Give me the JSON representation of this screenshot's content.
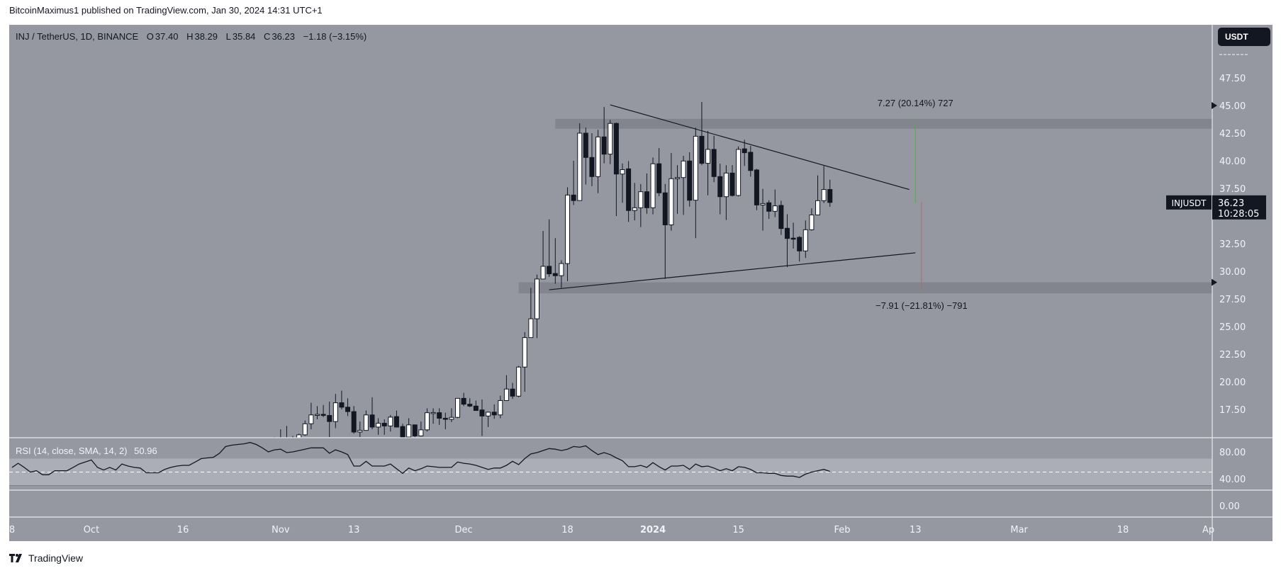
{
  "publish_line": "BitcoinMaximus1 published on TradingView.com, Jan 30, 2024 14:31 UTC+1",
  "legend": {
    "symbol": "INJ / TetherUS, 1D, BINANCE",
    "o_label": "O",
    "o": "37.40",
    "h_label": "H",
    "h": "38.29",
    "l_label": "L",
    "l": "35.84",
    "c_label": "C",
    "c": "36.23",
    "change": "−1.18 (−3.15%)"
  },
  "currency_button": "USDT",
  "last_price": {
    "symbol_label": "INJUSDT",
    "price": "36.23",
    "countdown": "10:28:05"
  },
  "rsi_legend": {
    "label": "RSI (14, close, SMA, 14, 2)",
    "value": "50.96"
  },
  "branding": "TradingView",
  "colors": {
    "background": "#9598a1",
    "up_body": "#ffffff",
    "down_body": "#131722",
    "zone": "#82858e",
    "rsi_band": "#abaeb7",
    "measure_up": "#4caf50",
    "measure_down": "#b26a6a"
  },
  "chart_data": [
    {
      "type": "candlestick",
      "title": "",
      "x_range": [
        "2023-09-18",
        "2024-04-01"
      ],
      "y_range": [
        14.9,
        49
      ],
      "y_ticks": [
        "47.50",
        "45.00",
        "42.50",
        "40.00",
        "37.50",
        "32.50",
        "30.00",
        "27.50",
        "25.00",
        "22.50",
        "20.00",
        "17.50"
      ],
      "x_ticks": [
        {
          "date": "2023-09-18",
          "label": "8"
        },
        {
          "date": "2023-10-01",
          "label": "Oct"
        },
        {
          "date": "2023-10-16",
          "label": "16"
        },
        {
          "date": "2023-11-01",
          "label": "Nov"
        },
        {
          "date": "2023-11-13",
          "label": "13"
        },
        {
          "date": "2023-12-01",
          "label": "Dec"
        },
        {
          "date": "2023-12-18",
          "label": "18"
        },
        {
          "date": "2024-01-01",
          "label": "2024"
        },
        {
          "date": "2024-01-15",
          "label": "15"
        },
        {
          "date": "2024-02-01",
          "label": "Feb"
        },
        {
          "date": "2024-02-13",
          "label": "13"
        },
        {
          "date": "2024-03-01",
          "label": "Mar"
        },
        {
          "date": "2024-03-18",
          "label": "18"
        },
        {
          "date": "2024-04-01",
          "label": "Ap"
        }
      ],
      "grid": false,
      "candles_ohlc": [
        [
          "2023-10-30",
          14.2,
          14.8,
          13.8,
          14.5
        ],
        [
          "2023-10-31",
          14.5,
          15.0,
          14.0,
          14.3
        ],
        [
          "2023-11-01",
          14.3,
          15.7,
          14.0,
          14.6
        ],
        [
          "2023-11-02",
          14.6,
          16.0,
          14.2,
          14.7
        ],
        [
          "2023-11-03",
          14.7,
          15.1,
          14.4,
          14.9
        ],
        [
          "2023-11-04",
          14.9,
          15.3,
          14.6,
          15.2
        ],
        [
          "2023-11-05",
          15.2,
          16.5,
          15.1,
          16.2
        ],
        [
          "2023-11-06",
          16.2,
          18.1,
          15.7,
          17.0
        ],
        [
          "2023-11-07",
          17.0,
          17.8,
          16.6,
          17.05
        ],
        [
          "2023-11-08",
          17.05,
          17.9,
          16.8,
          16.95
        ],
        [
          "2023-11-09",
          16.95,
          18.2,
          15.0,
          16.4
        ],
        [
          "2023-11-10",
          16.4,
          18.9,
          15.8,
          18.1
        ],
        [
          "2023-11-11",
          18.1,
          19.2,
          17.5,
          17.7
        ],
        [
          "2023-11-12",
          17.7,
          18.5,
          16.9,
          17.3
        ],
        [
          "2023-11-13",
          17.3,
          17.8,
          15.3,
          15.45
        ],
        [
          "2023-11-14",
          15.45,
          16.4,
          15.0,
          15.6
        ],
        [
          "2023-11-15",
          15.6,
          17.4,
          15.6,
          17.0
        ],
        [
          "2023-11-16",
          17.0,
          18.6,
          15.7,
          15.9
        ],
        [
          "2023-11-17",
          15.9,
          16.7,
          15.2,
          16.25
        ],
        [
          "2023-11-18",
          16.25,
          16.6,
          15.2,
          16.0
        ],
        [
          "2023-11-19",
          16.0,
          17.0,
          15.5,
          16.8
        ],
        [
          "2023-11-20",
          16.85,
          17.4,
          15.9,
          15.9
        ],
        [
          "2023-11-21",
          15.95,
          16.2,
          14.8,
          15.0
        ],
        [
          "2023-11-22",
          15.0,
          16.7,
          14.9,
          16.1
        ],
        [
          "2023-11-23",
          16.1,
          16.1,
          15.0,
          15.1
        ],
        [
          "2023-11-24",
          15.1,
          16.4,
          15.05,
          15.65
        ],
        [
          "2023-11-25",
          15.65,
          17.6,
          15.5,
          17.2
        ],
        [
          "2023-11-26",
          17.2,
          17.6,
          16.2,
          17.22
        ],
        [
          "2023-11-27",
          17.2,
          17.6,
          16.1,
          16.7
        ],
        [
          "2023-11-28",
          16.7,
          17.2,
          15.7,
          16.6
        ],
        [
          "2023-11-29",
          16.6,
          17.6,
          16.35,
          16.78
        ],
        [
          "2023-11-30",
          16.78,
          18.5,
          16.7,
          18.5
        ],
        [
          "2023-12-01",
          18.5,
          19.0,
          17.8,
          17.97
        ],
        [
          "2023-12-02",
          17.97,
          18.5,
          17.7,
          17.8
        ],
        [
          "2023-12-03",
          17.8,
          18.3,
          17.4,
          17.4
        ],
        [
          "2023-12-04",
          17.45,
          18.4,
          15.1,
          16.9
        ],
        [
          "2023-12-05",
          16.9,
          17.3,
          15.9,
          17.25
        ],
        [
          "2023-12-06",
          17.25,
          17.95,
          16.65,
          17.0
        ],
        [
          "2023-12-07",
          17.0,
          18.75,
          16.7,
          18.3
        ],
        [
          "2023-12-08",
          18.3,
          20.6,
          18.3,
          19.34
        ],
        [
          "2023-12-09",
          19.34,
          19.9,
          18.45,
          18.7
        ],
        [
          "2023-12-10",
          18.7,
          21.43,
          18.6,
          21.33
        ],
        [
          "2023-12-11",
          21.33,
          24.5,
          19.1,
          24.0
        ],
        [
          "2023-12-12",
          24.0,
          28.5,
          24.0,
          25.7
        ],
        [
          "2023-12-13",
          25.7,
          29.7,
          23.95,
          29.3
        ],
        [
          "2023-12-14",
          29.3,
          33.65,
          29.3,
          30.45
        ],
        [
          "2023-12-15",
          30.45,
          34.7,
          29.5,
          29.77
        ],
        [
          "2023-12-16",
          29.8,
          33.0,
          28.87,
          29.6
        ],
        [
          "2023-12-17",
          29.6,
          31.0,
          28.5,
          30.7
        ],
        [
          "2023-12-18",
          30.7,
          37.6,
          29.1,
          36.9
        ],
        [
          "2023-12-19",
          36.9,
          40.0,
          36.0,
          36.4
        ],
        [
          "2023-12-20",
          36.4,
          43.4,
          36.4,
          42.5
        ],
        [
          "2023-12-21",
          42.5,
          43.0,
          37.85,
          40.3
        ],
        [
          "2023-12-22",
          40.3,
          42.5,
          37.7,
          38.57
        ],
        [
          "2023-12-23",
          38.57,
          42.8,
          37.07,
          42.16
        ],
        [
          "2023-12-24",
          42.16,
          44.87,
          39.77,
          40.6
        ],
        [
          "2023-12-25",
          40.6,
          43.7,
          39.7,
          43.38
        ],
        [
          "2023-12-26",
          43.38,
          43.45,
          35.0,
          38.8
        ],
        [
          "2023-12-27",
          38.8,
          39.75,
          36.2,
          39.2
        ],
        [
          "2023-12-28",
          39.27,
          39.97,
          34.47,
          35.5
        ],
        [
          "2023-12-29",
          35.5,
          38.0,
          34.6,
          35.75
        ],
        [
          "2023-12-30",
          35.75,
          37.9,
          34.0,
          37.2
        ],
        [
          "2023-12-31",
          37.2,
          38.85,
          35.2,
          35.75
        ],
        [
          "2024-01-01",
          35.75,
          40.3,
          35.15,
          39.73
        ],
        [
          "2024-01-02",
          39.73,
          41.15,
          36.8,
          37.1
        ],
        [
          "2024-01-03",
          37.1,
          37.9,
          29.3,
          34.2
        ],
        [
          "2024-01-04",
          34.2,
          40.7,
          33.68,
          38.38
        ],
        [
          "2024-01-05",
          38.38,
          39.6,
          35.2,
          38.48
        ],
        [
          "2024-01-06",
          38.48,
          40.45,
          35.1,
          39.98
        ],
        [
          "2024-01-07",
          39.98,
          40.77,
          35.85,
          36.43
        ],
        [
          "2024-01-08",
          36.43,
          43.0,
          33.0,
          42.22
        ],
        [
          "2024-01-09",
          42.22,
          45.32,
          39.6,
          39.77
        ],
        [
          "2024-01-10",
          39.77,
          42.7,
          36.88,
          41.03
        ],
        [
          "2024-01-11",
          41.03,
          42.26,
          38.06,
          38.57
        ],
        [
          "2024-01-12",
          38.57,
          39.74,
          35.15,
          36.75
        ],
        [
          "2024-01-13",
          36.75,
          39.6,
          34.64,
          38.89
        ],
        [
          "2024-01-14",
          38.89,
          39.6,
          36.77,
          36.86
        ],
        [
          "2024-01-15",
          36.86,
          41.3,
          36.77,
          41.03
        ],
        [
          "2024-01-16",
          41.08,
          41.9,
          39.53,
          40.73
        ],
        [
          "2024-01-17",
          40.77,
          41.35,
          38.57,
          39.12
        ],
        [
          "2024-01-18",
          39.17,
          39.27,
          35.53,
          36.0
        ],
        [
          "2024-01-19",
          36.0,
          37.46,
          33.68,
          36.13
        ],
        [
          "2024-01-20",
          36.2,
          36.43,
          34.74,
          35.43
        ],
        [
          "2024-01-21",
          35.43,
          37.4,
          34.9,
          35.92
        ],
        [
          "2024-01-22",
          35.96,
          36.39,
          33.29,
          33.87
        ],
        [
          "2024-01-23",
          33.89,
          35.17,
          30.37,
          32.97
        ],
        [
          "2024-01-24",
          33.0,
          34.4,
          32.05,
          32.98
        ],
        [
          "2024-01-25",
          33.07,
          33.18,
          30.88,
          31.84
        ],
        [
          "2024-01-26",
          31.84,
          34.6,
          31.2,
          33.76
        ],
        [
          "2024-01-27",
          33.76,
          35.7,
          33.68,
          35.1
        ],
        [
          "2024-01-28",
          35.1,
          38.68,
          35.06,
          36.39
        ],
        [
          "2024-01-29",
          36.39,
          39.53,
          36.17,
          37.4
        ],
        [
          "2024-01-30",
          37.4,
          38.29,
          35.84,
          36.23
        ]
      ],
      "zones": [
        {
          "from": "2023-12-16",
          "top": 43.8,
          "bottom": 42.9
        },
        {
          "from": "2023-12-10",
          "top": 29.0,
          "bottom": 28.0
        }
      ],
      "trendlines": [
        {
          "from": [
            "2023-12-25",
            45.06
          ],
          "to": [
            "2024-02-12",
            37.4
          ]
        },
        {
          "from": [
            "2023-12-15",
            28.33
          ],
          "to": [
            "2024-02-13",
            31.67
          ]
        }
      ],
      "measures": [
        {
          "date": "2024-02-13",
          "from": 36.2,
          "to": 43.4,
          "label": "7.27 (20.14%) 727",
          "direction": "up"
        },
        {
          "date": "2024-02-14",
          "from": 36.3,
          "to": 28.4,
          "label": "−7.91 (−21.81%) −791",
          "direction": "down"
        }
      ],
      "axis_markers": [
        45.0,
        29.0
      ],
      "last_price": 36.23
    },
    {
      "type": "line",
      "title": "RSI (14, close, SMA, 14, 2)",
      "y_range": [
        0,
        100
      ],
      "y_ticks": [
        "80.00",
        "40.00",
        "0.00"
      ],
      "band": [
        30,
        70
      ],
      "midline": 50,
      "daily_from": "2023-09-18",
      "values": [
        57,
        63,
        57,
        50,
        52,
        46,
        46,
        52,
        52,
        52,
        57,
        62,
        65,
        68,
        57,
        53,
        57,
        53,
        62,
        59,
        57,
        56,
        49,
        49,
        49,
        54,
        57,
        59,
        60,
        60,
        65,
        70,
        71,
        72,
        78,
        88,
        90,
        91,
        92,
        94,
        91,
        86,
        80,
        83,
        84,
        79,
        80,
        82,
        84,
        86,
        86,
        86,
        78,
        83,
        80,
        76,
        59,
        59,
        66,
        59,
        59,
        59,
        62,
        55,
        48,
        56,
        52,
        55,
        59,
        58,
        57,
        57,
        57,
        65,
        63,
        62,
        60,
        57,
        54,
        56,
        56,
        60,
        66,
        61,
        70,
        77,
        79,
        82,
        85,
        84,
        82,
        84,
        88,
        87,
        89,
        82,
        76,
        79,
        76,
        71,
        67,
        58,
        58,
        60,
        57,
        64,
        58,
        53,
        59,
        59,
        60,
        54,
        62,
        58,
        59,
        56,
        52,
        55,
        52,
        58,
        57,
        54,
        49,
        49,
        48,
        48,
        45,
        44,
        44,
        42,
        47,
        50,
        52,
        54,
        51
      ]
    }
  ]
}
